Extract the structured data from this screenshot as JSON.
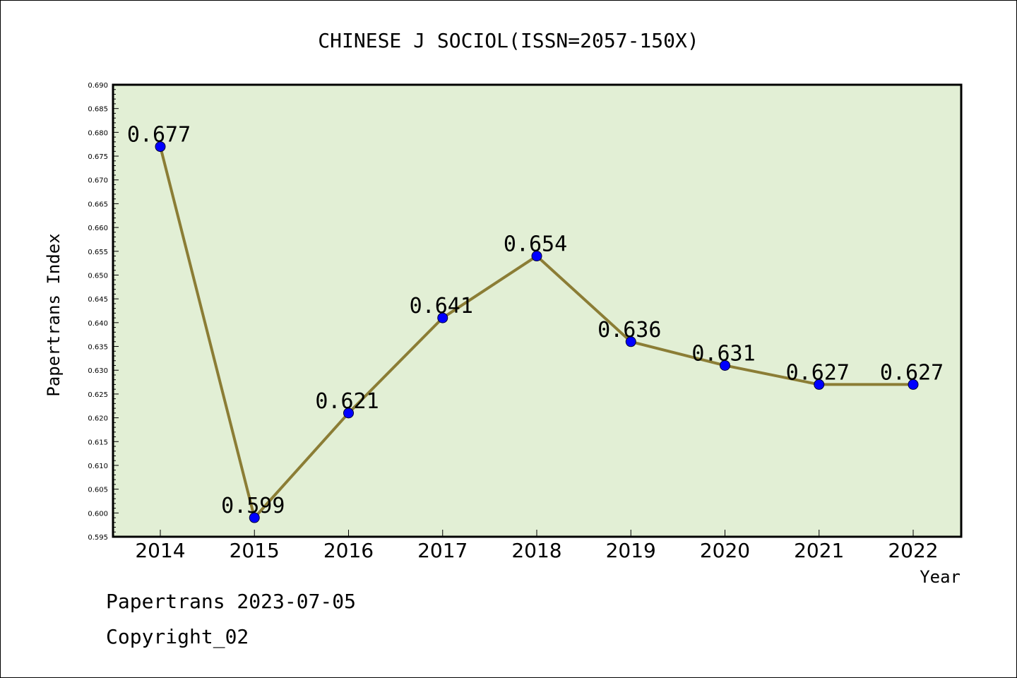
{
  "chart_data": {
    "type": "line",
    "title": "CHINESE J SOCIOL(ISSN=2057-150X)",
    "xlabel": "Year",
    "ylabel": "Papertrans Index",
    "categories": [
      "2014",
      "2015",
      "2016",
      "2017",
      "2018",
      "2019",
      "2020",
      "2021",
      "2022"
    ],
    "values": [
      0.677,
      0.599,
      0.621,
      0.641,
      0.654,
      0.636,
      0.631,
      0.627,
      0.627
    ],
    "data_labels": [
      "0.677",
      "0.599",
      "0.621",
      "0.641",
      "0.654",
      "0.636",
      "0.631",
      "0.627",
      "0.627"
    ],
    "ylim": [
      0.595,
      0.69
    ],
    "yticks": [
      "0.595",
      "0.600",
      "0.605",
      "0.610",
      "0.615",
      "0.620",
      "0.625",
      "0.630",
      "0.635",
      "0.640",
      "0.645",
      "0.650",
      "0.655",
      "0.660",
      "0.665",
      "0.670",
      "0.675",
      "0.680",
      "0.685",
      "0.690"
    ],
    "grid": false,
    "colors": {
      "plot_background": "#e2efd5",
      "line": "#8b7d35",
      "marker": "#0000ff",
      "axis": "#000000"
    }
  },
  "footer": {
    "line1": "Papertrans 2023-07-05",
    "line2": "Copyright_02"
  }
}
